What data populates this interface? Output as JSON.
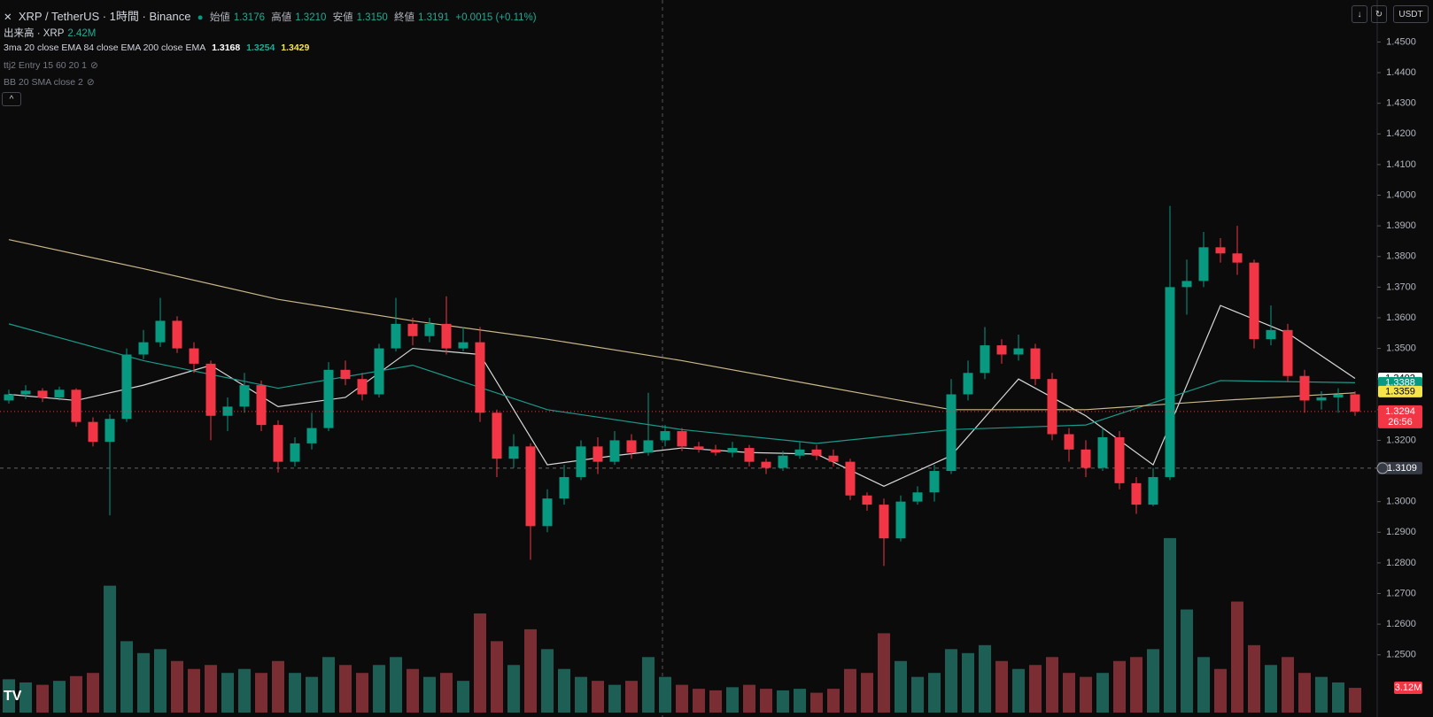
{
  "header": {
    "symbol": "XRP / TetherUS · 1時間 · Binance",
    "ohlc": [
      {
        "label": "始値",
        "value": "1.3176"
      },
      {
        "label": "高値",
        "value": "1.3210"
      },
      {
        "label": "安値",
        "value": "1.3150"
      },
      {
        "label": "終値",
        "value": "1.3191"
      }
    ],
    "change": "+0.0015 (+0.11%)",
    "indicators": [
      {
        "title": "出来高 · XRP",
        "values": [
          "2.42M"
        ]
      },
      {
        "title": "3ma 20 close EMA 84 close EMA 200 close EMA",
        "values": [
          "1.3168",
          "1.3254",
          "1.3429"
        ]
      },
      {
        "title": "ttj2 Entry 15 60 20 1",
        "values": []
      },
      {
        "title": "BB 20 SMA close 2",
        "values": []
      }
    ],
    "currency": "USDT"
  },
  "chart_data": {
    "type": "candlestick",
    "up_color": "#089981",
    "down_color": "#f23645",
    "volume_up_color": "#1d5e55",
    "volume_down_color": "#7a2e33",
    "ylim": [
      1.2297,
      1.4637
    ],
    "yticks": [
      {
        "value": 1.45,
        "label": "1.4500"
      },
      {
        "value": 1.44,
        "label": "1.4400"
      },
      {
        "value": 1.43,
        "label": "1.4300"
      },
      {
        "value": 1.42,
        "label": "1.4200"
      },
      {
        "value": 1.41,
        "label": "1.4100"
      },
      {
        "value": 1.4,
        "label": "1.4000"
      },
      {
        "value": 1.39,
        "label": "1.3900"
      },
      {
        "value": 1.38,
        "label": "1.3800"
      },
      {
        "value": 1.37,
        "label": "1.3700"
      },
      {
        "value": 1.36,
        "label": "1.3600"
      },
      {
        "value": 1.35,
        "label": "1.3500"
      },
      {
        "value": 1.34,
        "label": "1.3400"
      },
      {
        "value": 1.33,
        "label": "1.3300"
      },
      {
        "value": 1.32,
        "label": "1.3200"
      },
      {
        "value": 1.31,
        "label": "1.3100"
      },
      {
        "value": 1.3,
        "label": "1.3000"
      },
      {
        "value": 1.29,
        "label": "1.2900"
      },
      {
        "value": 1.28,
        "label": "1.2800"
      },
      {
        "value": 1.27,
        "label": "1.2700"
      },
      {
        "value": 1.26,
        "label": "1.2600"
      },
      {
        "value": 1.25,
        "label": "1.2500"
      }
    ],
    "y3lim": [
      0,
      25
    ],
    "ohlc": [
      [
        1.333,
        1.3365,
        1.332,
        1.335
      ],
      [
        1.335,
        1.338,
        1.3335,
        1.3362
      ],
      [
        1.3362,
        1.337,
        1.3325,
        1.334
      ],
      [
        1.334,
        1.3375,
        1.333,
        1.3365
      ],
      [
        1.3365,
        1.337,
        1.3245,
        1.326
      ],
      [
        1.326,
        1.3275,
        1.318,
        1.3195
      ],
      [
        1.3195,
        1.3285,
        1.2955,
        1.327
      ],
      [
        1.327,
        1.35,
        1.326,
        1.348
      ],
      [
        1.348,
        1.356,
        1.3465,
        1.352
      ],
      [
        1.352,
        1.3665,
        1.3505,
        1.359
      ],
      [
        1.359,
        1.3605,
        1.3485,
        1.35
      ],
      [
        1.35,
        1.352,
        1.342,
        1.345
      ],
      [
        1.345,
        1.346,
        1.32,
        1.328
      ],
      [
        1.328,
        1.334,
        1.323,
        1.331
      ],
      [
        1.331,
        1.342,
        1.329,
        1.338
      ],
      [
        1.338,
        1.3395,
        1.323,
        1.325
      ],
      [
        1.325,
        1.3265,
        1.3095,
        1.313
      ],
      [
        1.313,
        1.321,
        1.3115,
        1.319
      ],
      [
        1.319,
        1.329,
        1.317,
        1.324
      ],
      [
        1.324,
        1.3455,
        1.323,
        1.343
      ],
      [
        1.343,
        1.346,
        1.338,
        1.34
      ],
      [
        1.34,
        1.342,
        1.333,
        1.335
      ],
      [
        1.335,
        1.3515,
        1.334,
        1.35
      ],
      [
        1.35,
        1.3665,
        1.349,
        1.358
      ],
      [
        1.358,
        1.36,
        1.351,
        1.354
      ],
      [
        1.354,
        1.36,
        1.352,
        1.358
      ],
      [
        1.358,
        1.367,
        1.348,
        1.35
      ],
      [
        1.35,
        1.357,
        1.349,
        1.352
      ],
      [
        1.352,
        1.357,
        1.326,
        1.329
      ],
      [
        1.329,
        1.33,
        1.308,
        1.314
      ],
      [
        1.314,
        1.322,
        1.311,
        1.318
      ],
      [
        1.318,
        1.319,
        1.281,
        1.292
      ],
      [
        1.292,
        1.304,
        1.29,
        1.301
      ],
      [
        1.301,
        1.312,
        1.299,
        1.308
      ],
      [
        1.308,
        1.32,
        1.307,
        1.318
      ],
      [
        1.318,
        1.321,
        1.309,
        1.313
      ],
      [
        1.313,
        1.323,
        1.312,
        1.32
      ],
      [
        1.32,
        1.322,
        1.314,
        1.316
      ],
      [
        1.316,
        1.3355,
        1.315,
        1.32
      ],
      [
        1.32,
        1.325,
        1.318,
        1.323
      ],
      [
        1.323,
        1.324,
        1.3165,
        1.318
      ],
      [
        1.318,
        1.3195,
        1.316,
        1.317
      ],
      [
        1.317,
        1.3185,
        1.315,
        1.316
      ],
      [
        1.316,
        1.3195,
        1.3145,
        1.3175
      ],
      [
        1.3175,
        1.3185,
        1.3115,
        1.313
      ],
      [
        1.313,
        1.314,
        1.309,
        1.311
      ],
      [
        1.311,
        1.3165,
        1.31,
        1.315
      ],
      [
        1.315,
        1.3195,
        1.314,
        1.317
      ],
      [
        1.317,
        1.3185,
        1.3135,
        1.315
      ],
      [
        1.315,
        1.317,
        1.3115,
        1.313
      ],
      [
        1.313,
        1.314,
        1.3005,
        1.302
      ],
      [
        1.302,
        1.303,
        1.297,
        1.299
      ],
      [
        1.299,
        1.301,
        1.279,
        1.288
      ],
      [
        1.288,
        1.302,
        1.287,
        1.3
      ],
      [
        1.3,
        1.305,
        1.299,
        1.303
      ],
      [
        1.303,
        1.312,
        1.3,
        1.31
      ],
      [
        1.31,
        1.34,
        1.309,
        1.335
      ],
      [
        1.335,
        1.346,
        1.333,
        1.342
      ],
      [
        1.342,
        1.357,
        1.34,
        1.351
      ],
      [
        1.351,
        1.353,
        1.345,
        1.348
      ],
      [
        1.348,
        1.3545,
        1.346,
        1.35
      ],
      [
        1.35,
        1.3515,
        1.338,
        1.34
      ],
      [
        1.34,
        1.342,
        1.32,
        1.322
      ],
      [
        1.322,
        1.324,
        1.313,
        1.317
      ],
      [
        1.317,
        1.32,
        1.308,
        1.311
      ],
      [
        1.311,
        1.324,
        1.31,
        1.321
      ],
      [
        1.321,
        1.323,
        1.304,
        1.306
      ],
      [
        1.306,
        1.308,
        1.296,
        1.299
      ],
      [
        1.299,
        1.311,
        1.2985,
        1.308
      ],
      [
        1.308,
        1.3965,
        1.307,
        1.37
      ],
      [
        1.37,
        1.379,
        1.361,
        1.372
      ],
      [
        1.372,
        1.388,
        1.37,
        1.383
      ],
      [
        1.383,
        1.386,
        1.378,
        1.381
      ],
      [
        1.381,
        1.39,
        1.374,
        1.378
      ],
      [
        1.378,
        1.379,
        1.35,
        1.353
      ],
      [
        1.353,
        1.364,
        1.351,
        1.356
      ],
      [
        1.356,
        1.358,
        1.339,
        1.341
      ],
      [
        1.341,
        1.343,
        1.329,
        1.333
      ],
      [
        1.333,
        1.336,
        1.33,
        1.334
      ],
      [
        1.334,
        1.337,
        1.329,
        1.335
      ],
      [
        1.335,
        1.336,
        1.328,
        1.3294
      ]
    ],
    "volume": [
      4.2,
      3.8,
      3.5,
      4.0,
      4.6,
      5.0,
      16.0,
      9.0,
      7.5,
      8.0,
      6.5,
      5.5,
      6.0,
      5.0,
      5.5,
      5.0,
      6.5,
      5.0,
      4.5,
      7.0,
      6.0,
      5.0,
      6.0,
      7.0,
      5.5,
      4.5,
      5.0,
      4.0,
      12.5,
      9.0,
      6.0,
      10.5,
      8.0,
      5.5,
      4.5,
      4.0,
      3.5,
      4.0,
      7.0,
      4.5,
      3.5,
      3.0,
      2.8,
      3.2,
      3.5,
      3.0,
      2.8,
      3.0,
      2.5,
      3.0,
      5.5,
      5.0,
      10.0,
      6.5,
      4.5,
      5.0,
      8.0,
      7.5,
      8.5,
      6.5,
      5.5,
      6.0,
      7.0,
      5.0,
      4.5,
      5.0,
      6.5,
      7.0,
      8.0,
      22.0,
      13.0,
      7.0,
      5.5,
      14.0,
      8.5,
      6.0,
      7.0,
      5.0,
      4.5,
      3.8,
      3.12
    ],
    "lines": [
      {
        "color": "#d8d8d8",
        "x": [
          0,
          4,
          8,
          12,
          16,
          20,
          24,
          28,
          32,
          36,
          40,
          44,
          48,
          52,
          56,
          60,
          64,
          68,
          72,
          76,
          80
        ],
        "values": [
          1.335,
          1.333,
          1.338,
          1.3445,
          1.331,
          1.334,
          1.35,
          1.348,
          1.312,
          1.315,
          1.3175,
          1.316,
          1.3155,
          1.305,
          1.315,
          1.34,
          1.328,
          1.312,
          1.364,
          1.355,
          1.3402
        ]
      },
      {
        "color": "#1a9a8a",
        "x": [
          0,
          8,
          16,
          24,
          32,
          40,
          48,
          56,
          64,
          72,
          80
        ],
        "values": [
          1.358,
          1.346,
          1.337,
          1.3445,
          1.33,
          1.3235,
          1.319,
          1.3235,
          1.325,
          1.3395,
          1.3388
        ]
      },
      {
        "color": "#c9b88a",
        "x": [
          0,
          8,
          16,
          24,
          32,
          40,
          48,
          56,
          64,
          72,
          80
        ],
        "values": [
          1.3855,
          1.376,
          1.366,
          1.359,
          1.353,
          1.346,
          1.338,
          1.33,
          1.33,
          1.333,
          1.3355
        ]
      }
    ],
    "price_tags": [
      {
        "value": 1.3402,
        "color": "#ffffff"
      },
      {
        "value": 1.3388,
        "color": "#089981"
      },
      {
        "value": 1.3359,
        "color": "#f5e34a"
      }
    ],
    "last_price": {
      "value": 1.3294,
      "countdown": "26:56",
      "color": "#f23645"
    },
    "crosshair": {
      "value": 1.3109
    },
    "volume_tag": {
      "value": 3.12,
      "label": "3.12M",
      "color": "#f23645"
    }
  }
}
